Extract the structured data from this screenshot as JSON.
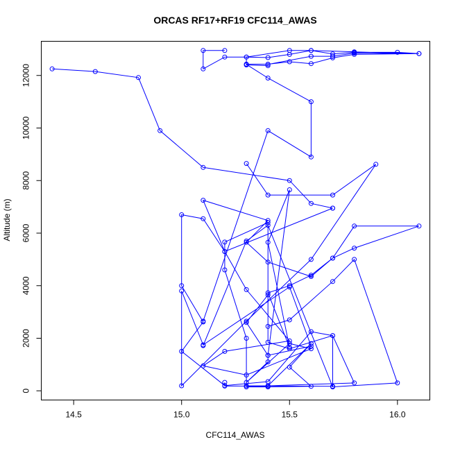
{
  "chart_data": {
    "type": "line",
    "title": "ORCAS RF17+RF19 CFC114_AWAS",
    "xlabel": "CFC114_AWAS",
    "ylabel": "Altitude (m)",
    "xlim": [
      14.35,
      16.15
    ],
    "ylim": [
      -350,
      13300
    ],
    "xticks": [
      14.5,
      15.0,
      15.5,
      16.0
    ],
    "xtick_labels": [
      "14.5",
      "15.0",
      "15.5",
      "16.0"
    ],
    "yticks": [
      0,
      2000,
      4000,
      6000,
      8000,
      10000,
      12000
    ],
    "ytick_labels": [
      "0",
      "2000",
      "4000",
      "6000",
      "8000",
      "10000",
      "12000"
    ],
    "grid": false,
    "legend": "none",
    "series_color": "#0000ff",
    "series": [
      {
        "x": [
          14.4,
          14.6,
          14.8,
          14.9,
          15.1,
          15.5,
          15.6,
          15.7
        ],
        "y": [
          12250,
          12150,
          11920,
          9900,
          8500,
          8000,
          7130,
          6950
        ]
      },
      {
        "x": [
          15.7,
          15.2,
          15.1,
          15.4,
          15.3,
          15.4,
          15.6,
          15.7,
          15.8,
          16.1,
          15.8,
          15.7,
          15.6,
          15.5,
          15.4,
          15.5,
          15.4,
          15.5,
          15.4,
          15.4,
          15.3,
          15.5,
          15.6,
          15.3,
          15.1,
          15.2,
          15.5,
          15.3,
          15.2,
          15.1,
          15.0,
          15.0,
          15.1,
          15.0,
          15.2,
          15.4,
          15.6,
          15.7,
          15.8,
          15.4,
          15.6,
          15.5,
          15.6,
          15.4,
          15.3,
          15.4,
          15.2,
          15.2
        ],
        "y": [
          6950,
          5300,
          7250,
          6480,
          5650,
          4900,
          4350,
          5050,
          6270,
          6270,
          5430,
          5050,
          4400,
          4000,
          3730,
          1650,
          5650,
          7650,
          1350,
          1100,
          320,
          1800,
          1600,
          600,
          950,
          1500,
          1900,
          3850,
          5300,
          6550,
          6700,
          4000,
          2620,
          1500,
          200,
          350,
          2250,
          2100,
          300,
          190,
          1800,
          900,
          170,
          150,
          150,
          180,
          180,
          320
        ]
      },
      {
        "x": [
          15.3,
          15.4,
          15.7,
          15.9,
          15.6,
          15.3,
          15.0,
          15.0,
          15.1,
          15.5,
          15.6,
          15.4,
          15.3,
          15.4,
          15.4,
          15.5,
          15.7,
          15.7,
          15.3,
          15.3,
          15.2,
          15.2,
          15.4,
          15.4,
          15.5,
          15.7,
          15.8,
          16.0,
          15.7,
          15.4,
          15.3,
          15.1
        ],
        "y": [
          8650,
          7450,
          7450,
          8620,
          5000,
          2650,
          190,
          3800,
          1750,
          3950,
          1700,
          1350,
          2600,
          3650,
          1850,
          1600,
          2100,
          170,
          190,
          2000,
          4600,
          5660,
          6400,
          2450,
          2700,
          4160,
          5000,
          300,
          150,
          6300,
          5700,
          1720
        ]
      },
      {
        "x": [
          15.2,
          15.1,
          15.1,
          15.2,
          15.3,
          15.5,
          15.6,
          15.7,
          15.8,
          16.0,
          16.1,
          15.8,
          15.6,
          15.5,
          15.4,
          15.3,
          15.3,
          15.4,
          15.5,
          15.6,
          15.7,
          15.8,
          16.1,
          15.8,
          15.7,
          15.6,
          15.4,
          15.4,
          15.3,
          15.3,
          15.4,
          15.6,
          15.6,
          15.4,
          15.1
        ],
        "y": [
          12950,
          12950,
          12250,
          12700,
          12700,
          12950,
          12950,
          12820,
          12880,
          12880,
          12830,
          12900,
          12950,
          12800,
          12680,
          12700,
          12430,
          12430,
          12520,
          12450,
          12670,
          12800,
          12830,
          12850,
          12730,
          12730,
          12420,
          12370,
          12400,
          12420,
          11900,
          11000,
          8900,
          9900,
          2650
        ]
      }
    ]
  }
}
